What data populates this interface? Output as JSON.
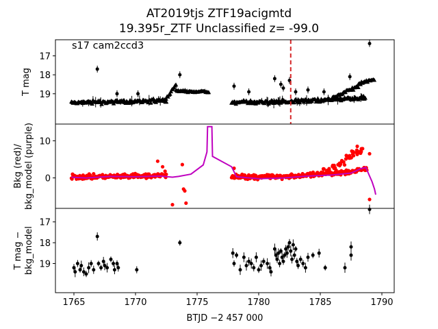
{
  "title": [
    "AT2019tjs  ZTF19acigmtd",
    "19.395r_ZTF Unclassified z= -99.0"
  ],
  "colors": {
    "black": "#000000",
    "red": "#ff0000",
    "purple": "#bf00bf",
    "marker_line": "#d62728"
  },
  "chart_data": [
    {
      "type": "scatter",
      "annotation": "s17 cam2ccd3",
      "ylabel": "T mag",
      "xlim": [
        1763.5,
        1791.0
      ],
      "ylim": [
        20.6,
        16.15
      ],
      "yinvert": true,
      "yticks": [
        17,
        18,
        19
      ],
      "vline": 1782.6,
      "segments": [
        {
          "x0": 1764.8,
          "x1": 1772.5,
          "base": 19.45,
          "spread": 0.13,
          "trend": -0.1
        },
        {
          "x0": 1777.8,
          "x1": 1788.7,
          "base": 19.45,
          "spread": 0.13,
          "trend": -0.25
        }
      ],
      "bumps": [
        {
          "x0": 1772.4,
          "x1": 1773.3,
          "y0": 19.35,
          "y1": 18.5
        },
        {
          "x0": 1773.3,
          "x1": 1776.0,
          "y0": 18.85,
          "y1": 18.9
        },
        {
          "x0": 1786.0,
          "x1": 1788.1,
          "y0": 19.2,
          "y1": 18.6
        },
        {
          "x0": 1788.1,
          "x1": 1789.4,
          "y0": 18.5,
          "y1": 18.2
        }
      ],
      "outliers": [
        [
          1766.9,
          17.7
        ],
        [
          1773.6,
          18.0
        ],
        [
          1778.0,
          18.6
        ],
        [
          1781.3,
          18.2
        ],
        [
          1781.8,
          18.5
        ],
        [
          1782.0,
          18.7
        ],
        [
          1782.5,
          18.3
        ],
        [
          1784.0,
          18.8
        ],
        [
          1785.3,
          18.9
        ],
        [
          1787.4,
          18.1
        ],
        [
          1789.0,
          16.35
        ],
        [
          1768.5,
          19.0
        ],
        [
          1770.2,
          19.0
        ],
        [
          1779.2,
          18.9
        ],
        [
          1783.0,
          18.9
        ]
      ]
    },
    {
      "type": "scatter",
      "ylabel": [
        "Bkg (red)/",
        "bkg_model (purple)"
      ],
      "xlim": [
        1763.5,
        1791.0
      ],
      "ylim": [
        -8.2,
        14.5
      ],
      "yticks": [
        0,
        10
      ],
      "red_segments": [
        {
          "x0": 1764.8,
          "x1": 1772.5,
          "base": 0.3,
          "spread": 0.9,
          "trend": 0.4
        },
        {
          "x0": 1777.8,
          "x1": 1788.8,
          "base": 0.3,
          "spread": 0.9,
          "trend": 2.2
        }
      ],
      "red_tail": [
        [
          1785.5,
          1.8
        ],
        [
          1786.2,
          2.8
        ],
        [
          1786.8,
          4.0
        ],
        [
          1787.3,
          5.5
        ],
        [
          1787.8,
          6.8
        ],
        [
          1788.2,
          7.3
        ]
      ],
      "red_outliers": [
        [
          1771.8,
          4.5
        ],
        [
          1772.2,
          3.0
        ],
        [
          1772.4,
          1.8
        ],
        [
          1773.0,
          -7.2
        ],
        [
          1773.8,
          3.6
        ],
        [
          1773.9,
          -3.0
        ],
        [
          1774.0,
          -3.5
        ],
        [
          1774.1,
          -6.8
        ],
        [
          1778.0,
          2.6
        ],
        [
          1788.0,
          8.5
        ],
        [
          1789.0,
          6.5
        ],
        [
          1789.0,
          -5.8
        ]
      ],
      "model": [
        [
          1764.8,
          0.2
        ],
        [
          1766.0,
          0.0
        ],
        [
          1768.0,
          0.4
        ],
        [
          1770.0,
          0.3
        ],
        [
          1772.0,
          0.5
        ],
        [
          1773.0,
          0.2
        ],
        [
          1773.5,
          0.4
        ],
        [
          1774.5,
          1.0
        ],
        [
          1775.5,
          3.5
        ],
        [
          1775.8,
          7.0
        ],
        [
          1775.85,
          13.8
        ],
        [
          1776.2,
          13.8
        ],
        [
          1776.25,
          5.8
        ],
        [
          1777.8,
          3.0
        ],
        [
          1778.2,
          0.3
        ],
        [
          1780.0,
          -0.2
        ],
        [
          1782.0,
          0.0
        ],
        [
          1784.0,
          0.5
        ],
        [
          1786.0,
          0.8
        ],
        [
          1787.5,
          1.3
        ],
        [
          1788.3,
          2.5
        ],
        [
          1788.7,
          2.8
        ],
        [
          1789.0,
          0.5
        ],
        [
          1789.2,
          -1.0
        ],
        [
          1789.4,
          -3.0
        ],
        [
          1789.5,
          -4.5
        ]
      ]
    },
    {
      "type": "scatter",
      "ylabel": [
        "T mag −",
        "bkg_model"
      ],
      "xlabel": "BTJD −2 457 000",
      "xlim": [
        1763.5,
        1791.0
      ],
      "ylim": [
        20.4,
        16.35
      ],
      "yinvert": true,
      "yticks": [
        17,
        18,
        19
      ],
      "xticks": [
        1765,
        1770,
        1775,
        1780,
        1785,
        1790
      ],
      "points": [
        [
          1765.0,
          19.2
        ],
        [
          1765.1,
          19.4
        ],
        [
          1765.3,
          19.0
        ],
        [
          1765.5,
          19.3
        ],
        [
          1765.6,
          19.1
        ],
        [
          1765.8,
          19.4
        ],
        [
          1766.0,
          19.5
        ],
        [
          1766.2,
          19.2
        ],
        [
          1766.4,
          19.0
        ],
        [
          1766.6,
          19.3
        ],
        [
          1766.9,
          17.7
        ],
        [
          1767.0,
          19.0
        ],
        [
          1767.2,
          19.2
        ],
        [
          1767.4,
          18.9
        ],
        [
          1767.5,
          19.1
        ],
        [
          1767.7,
          19.2
        ],
        [
          1768.0,
          18.8
        ],
        [
          1768.2,
          19.0
        ],
        [
          1768.3,
          19.3
        ],
        [
          1768.5,
          19.0
        ],
        [
          1768.6,
          19.2
        ],
        [
          1770.1,
          19.3
        ],
        [
          1773.6,
          18.0
        ],
        [
          1777.9,
          18.5
        ],
        [
          1778.0,
          19.0
        ],
        [
          1778.2,
          18.6
        ],
        [
          1778.5,
          19.3
        ],
        [
          1778.8,
          18.7
        ],
        [
          1779.0,
          19.1
        ],
        [
          1779.2,
          18.9
        ],
        [
          1779.4,
          19.0
        ],
        [
          1779.6,
          19.2
        ],
        [
          1779.8,
          18.7
        ],
        [
          1780.0,
          19.3
        ],
        [
          1780.2,
          19.1
        ],
        [
          1780.4,
          18.9
        ],
        [
          1780.7,
          19.0
        ],
        [
          1780.9,
          19.2
        ],
        [
          1781.0,
          19.4
        ],
        [
          1781.3,
          18.3
        ],
        [
          1781.4,
          18.6
        ],
        [
          1781.5,
          18.8
        ],
        [
          1781.6,
          18.5
        ],
        [
          1781.7,
          19.0
        ],
        [
          1781.8,
          18.4
        ],
        [
          1781.9,
          18.7
        ],
        [
          1782.0,
          18.9
        ],
        [
          1782.1,
          18.6
        ],
        [
          1782.2,
          18.3
        ],
        [
          1782.3,
          18.5
        ],
        [
          1782.4,
          18.2
        ],
        [
          1782.5,
          18.0
        ],
        [
          1782.6,
          18.4
        ],
        [
          1782.7,
          18.8
        ],
        [
          1782.8,
          18.1
        ],
        [
          1782.9,
          18.6
        ],
        [
          1783.0,
          18.3
        ],
        [
          1783.1,
          18.9
        ],
        [
          1783.2,
          19.1
        ],
        [
          1783.4,
          18.8
        ],
        [
          1783.6,
          19.0
        ],
        [
          1783.8,
          19.2
        ],
        [
          1784.0,
          18.7
        ],
        [
          1784.4,
          18.6
        ],
        [
          1784.9,
          18.5
        ],
        [
          1785.4,
          19.2
        ],
        [
          1787.0,
          19.2
        ],
        [
          1787.5,
          18.2
        ],
        [
          1787.5,
          18.6
        ],
        [
          1789.0,
          16.4
        ]
      ]
    }
  ]
}
